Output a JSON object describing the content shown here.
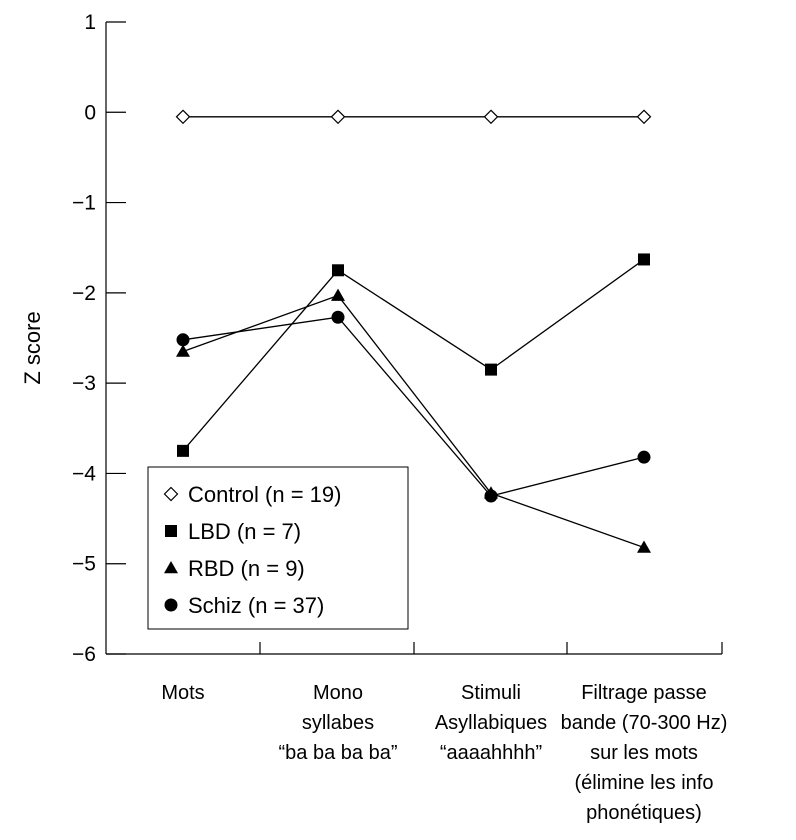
{
  "chart_data": {
    "type": "line",
    "ylabel": "Z score",
    "ylim": [
      -6,
      1
    ],
    "yticks": [
      "1",
      "0",
      "−1",
      "−2",
      "−3",
      "−4",
      "−5",
      "−6"
    ],
    "ytick_values": [
      1,
      0,
      -1,
      -2,
      -3,
      -4,
      -5,
      -6
    ],
    "categories": [
      [
        "Mots"
      ],
      [
        "Mono",
        "syllabes",
        "“ba ba ba ba”"
      ],
      [
        "Stimuli",
        "Asyllabiques",
        "“aaaahhhh”"
      ],
      [
        "Filtrage passe",
        "bande (70-300 Hz)",
        "sur les mots",
        "(élimine les info",
        "phonétiques)"
      ]
    ],
    "series": [
      {
        "name": "Control (n = 19)",
        "marker": "diamond-open",
        "values": [
          -0.05,
          -0.05,
          -0.05,
          -0.05
        ]
      },
      {
        "name": "LBD (n = 7)",
        "marker": "square",
        "values": [
          -3.75,
          -1.75,
          -2.85,
          -1.63
        ]
      },
      {
        "name": "RBD (n = 9)",
        "marker": "triangle",
        "values": [
          -2.65,
          -2.03,
          -4.22,
          -4.82
        ]
      },
      {
        "name": "Schiz (n = 37)",
        "marker": "circle",
        "values": [
          -2.52,
          -2.27,
          -4.25,
          -3.82
        ]
      }
    ],
    "legend_position": "bottom-left",
    "grid": false
  }
}
